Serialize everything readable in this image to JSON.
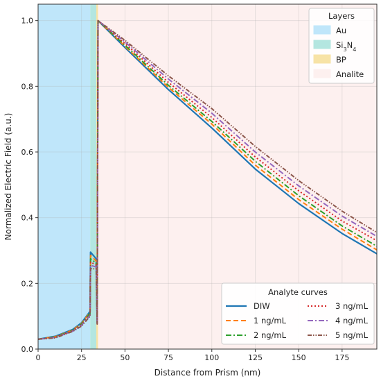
{
  "chart_data": {
    "type": "line",
    "xlabel": "Distance from Prism (nm)",
    "ylabel": "Normalized Electric Field (a.u.)",
    "xlim": [
      0,
      195
    ],
    "ylim": [
      0,
      1.05
    ],
    "xticks": [
      0,
      25,
      50,
      75,
      100,
      125,
      150,
      175
    ],
    "yticks": [
      0.0,
      0.2,
      0.4,
      0.6,
      0.8,
      1.0
    ],
    "grid": true,
    "regions": {
      "title": "Layers",
      "placement": "top-right",
      "items": [
        {
          "name": "Au",
          "range": [
            0,
            30
          ],
          "color": "#bfe6fa"
        },
        {
          "name": "Si3N4",
          "range": [
            30,
            33.5
          ],
          "color": "#b3e6e0"
        },
        {
          "name": "BP",
          "range": [
            33.5,
            34.5
          ],
          "color": "#f7e3a6"
        },
        {
          "name": "Analite",
          "range": [
            34.5,
            195
          ],
          "color": "#fdf0ef"
        }
      ]
    },
    "series_legend": {
      "title": "Analyte curves",
      "placement": "bottom-right",
      "columns": 2
    },
    "series": [
      {
        "name": "DIW",
        "color": "#1f77b4",
        "dash": "",
        "width": 2.2,
        "x": [
          0,
          10,
          20,
          25,
          29.9,
          30.2,
          33.4,
          34.0,
          34.5,
          50,
          75,
          100,
          125,
          150,
          175,
          195
        ],
        "y": [
          0.03,
          0.039,
          0.06,
          0.08,
          0.115,
          0.295,
          0.275,
          0.085,
          1.0,
          0.918,
          0.79,
          0.673,
          0.548,
          0.443,
          0.352,
          0.29
        ]
      },
      {
        "name": "1 ng/mL",
        "color": "#ff7f0e",
        "dash": "7,4",
        "width": 2,
        "x": [
          0,
          10,
          20,
          25,
          29.9,
          30.2,
          33.4,
          34.0,
          34.5,
          50,
          75,
          100,
          125,
          150,
          175,
          195
        ],
        "y": [
          0.03,
          0.038,
          0.058,
          0.078,
          0.112,
          0.285,
          0.268,
          0.082,
          1.0,
          0.922,
          0.797,
          0.685,
          0.56,
          0.455,
          0.365,
          0.302
        ]
      },
      {
        "name": "2 ng/mL",
        "color": "#2ca02c",
        "dash": "8,3,2,3",
        "width": 2,
        "x": [
          0,
          10,
          20,
          25,
          29.9,
          30.2,
          33.4,
          34.0,
          34.5,
          50,
          75,
          100,
          125,
          150,
          175,
          195
        ],
        "y": [
          0.03,
          0.037,
          0.057,
          0.076,
          0.109,
          0.275,
          0.262,
          0.08,
          1.0,
          0.925,
          0.803,
          0.693,
          0.572,
          0.467,
          0.375,
          0.313
        ]
      },
      {
        "name": "3 ng/mL",
        "color": "#d62728",
        "dash": "2,3",
        "width": 2,
        "x": [
          0,
          10,
          20,
          25,
          29.9,
          30.2,
          33.4,
          34.0,
          34.5,
          50,
          75,
          100,
          125,
          150,
          175,
          195
        ],
        "y": [
          0.03,
          0.036,
          0.056,
          0.074,
          0.106,
          0.265,
          0.256,
          0.078,
          1.0,
          0.93,
          0.812,
          0.705,
          0.585,
          0.482,
          0.39,
          0.33
        ]
      },
      {
        "name": "4 ng/mL",
        "color": "#9467bd",
        "dash": "8,3,2,3",
        "width": 2,
        "x": [
          0,
          10,
          20,
          25,
          29.9,
          30.2,
          33.4,
          34.0,
          34.5,
          50,
          75,
          100,
          125,
          150,
          175,
          195
        ],
        "y": [
          0.03,
          0.035,
          0.055,
          0.072,
          0.103,
          0.255,
          0.25,
          0.077,
          1.0,
          0.935,
          0.822,
          0.718,
          0.6,
          0.497,
          0.405,
          0.343
        ]
      },
      {
        "name": "5 ng/mL",
        "color": "#8c564b",
        "dash": "6,2,1.5,2,1.5,2",
        "width": 2,
        "x": [
          0,
          10,
          20,
          25,
          29.9,
          30.2,
          33.4,
          34.0,
          34.5,
          50,
          75,
          100,
          125,
          150,
          175,
          195
        ],
        "y": [
          0.03,
          0.034,
          0.054,
          0.07,
          0.1,
          0.245,
          0.244,
          0.076,
          1.0,
          0.94,
          0.832,
          0.732,
          0.617,
          0.513,
          0.42,
          0.355
        ]
      }
    ]
  }
}
